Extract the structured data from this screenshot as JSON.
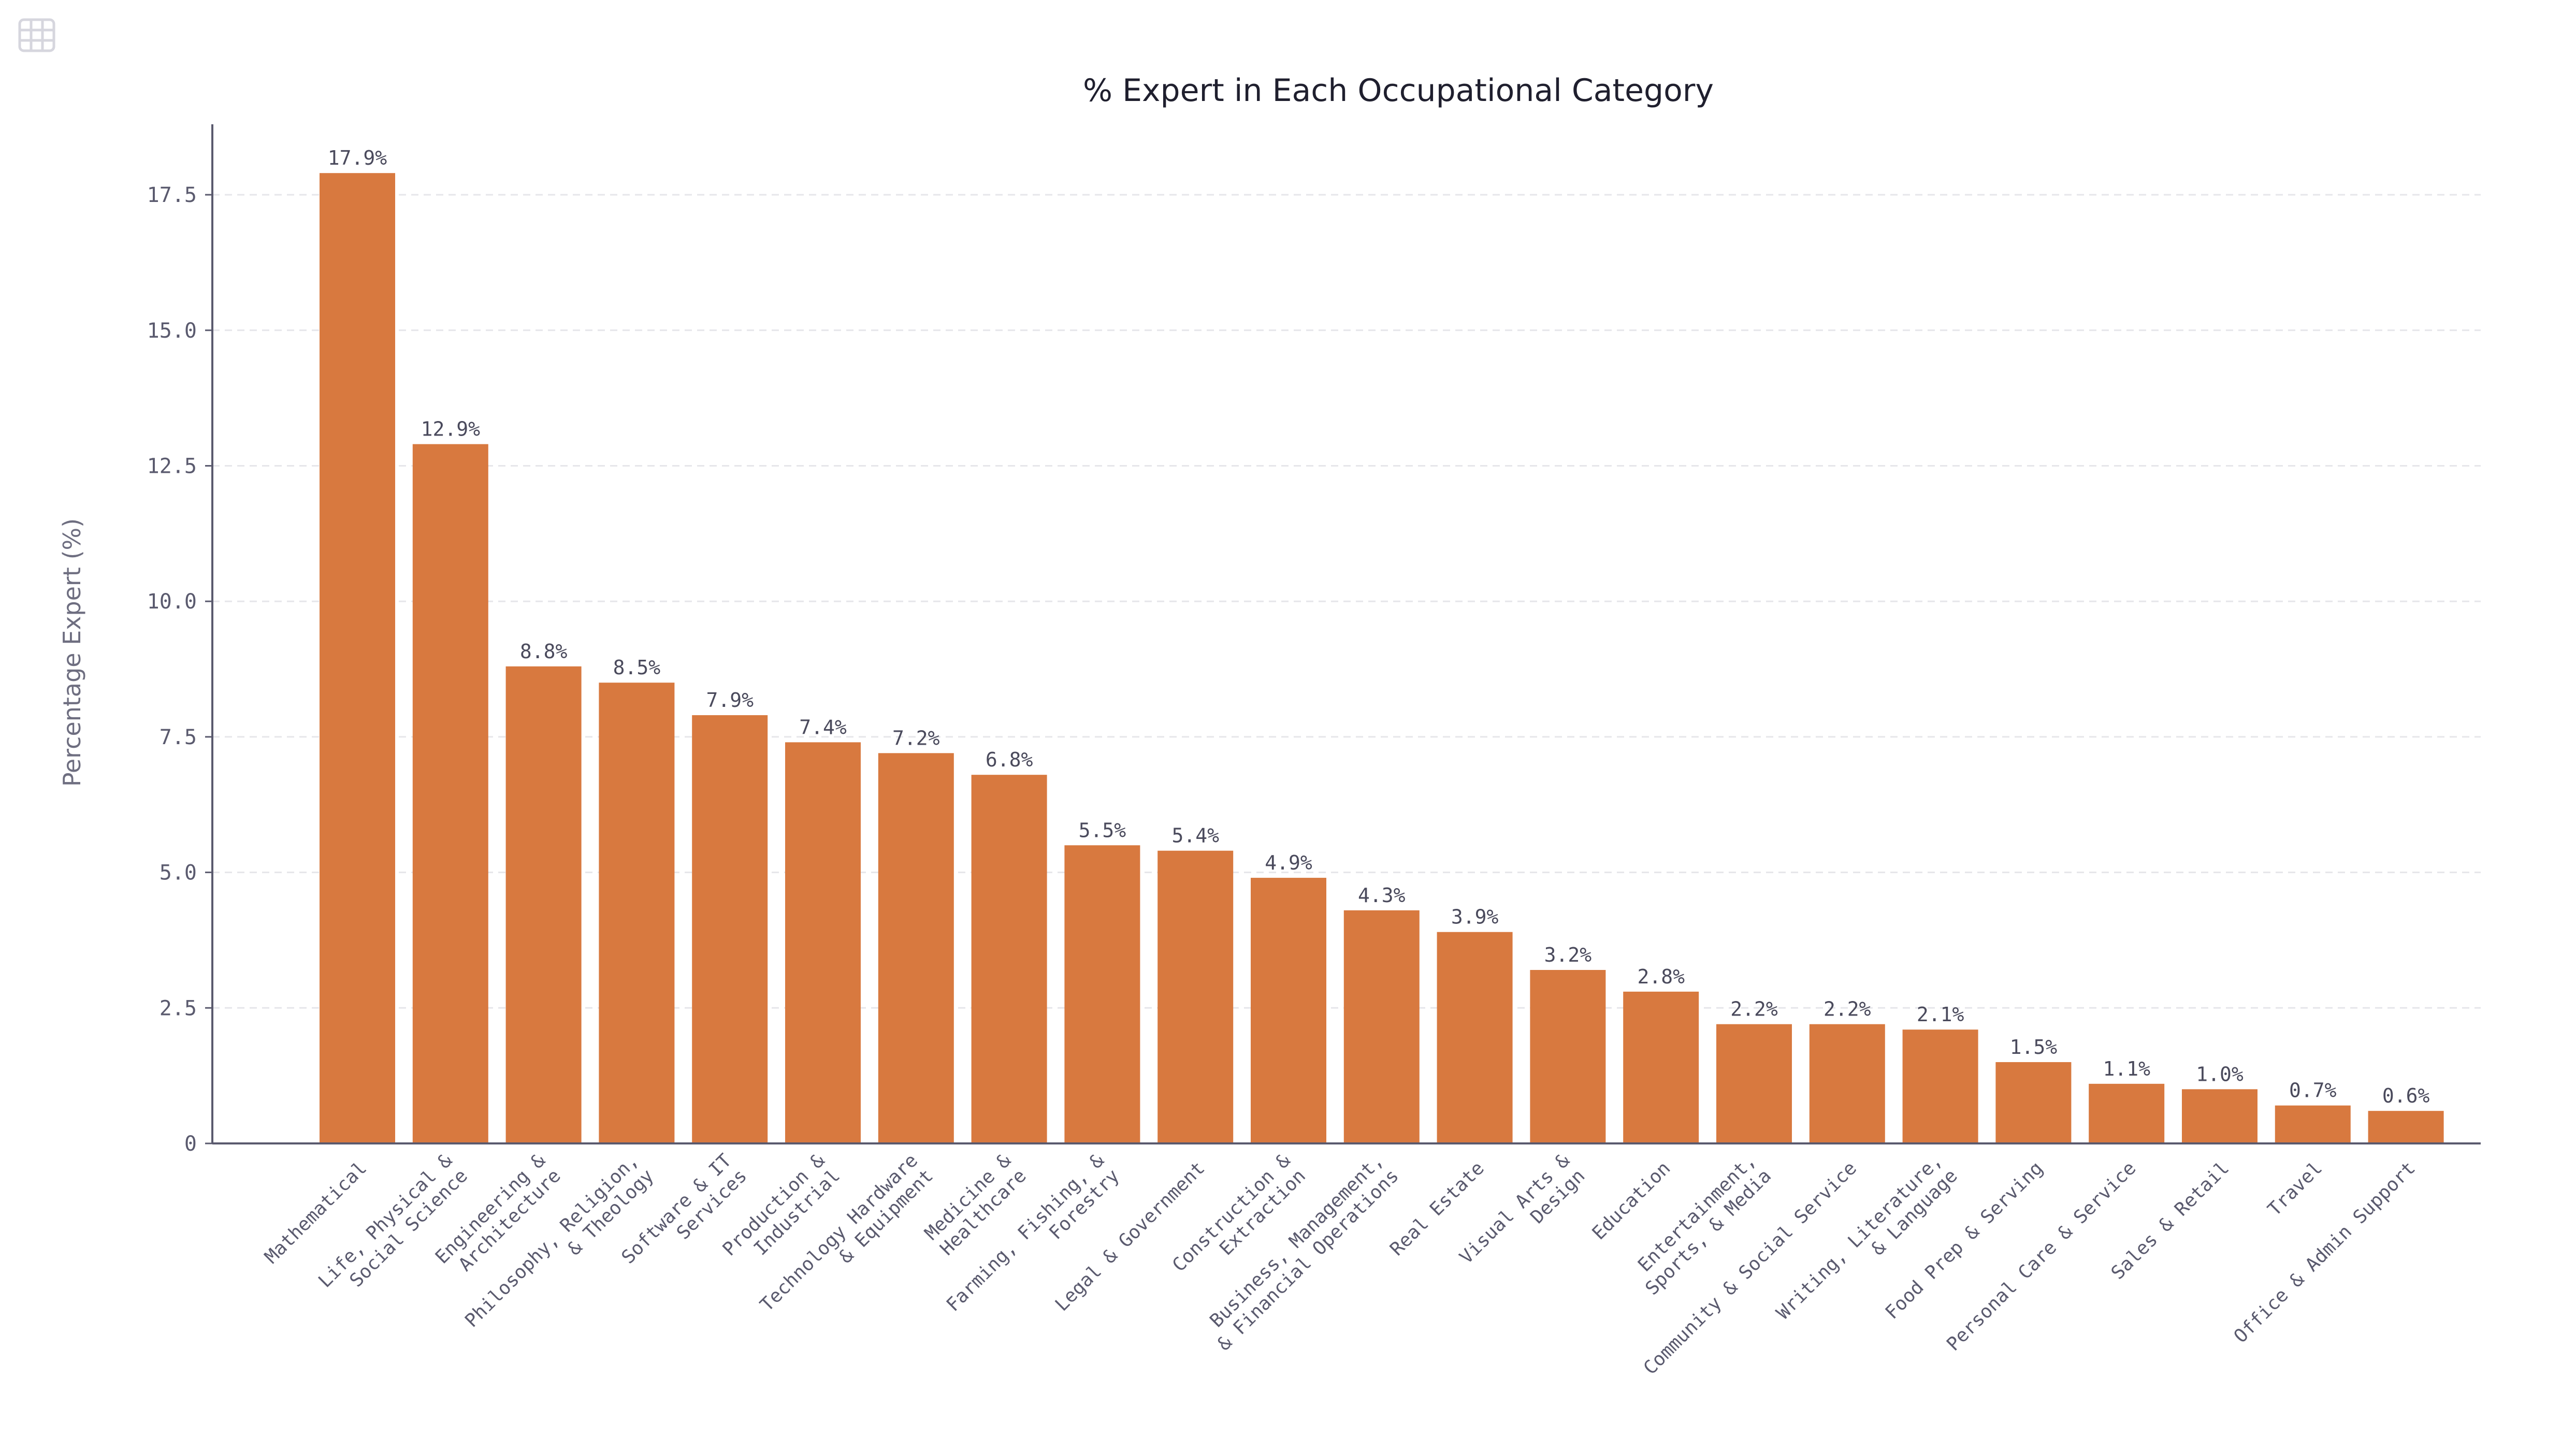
{
  "toolbar": {
    "table_icon": "table-icon"
  },
  "colors": {
    "bar": "#d8793f",
    "axis": "#5a5a6e",
    "grid": "#e6e6ea",
    "icon": "#d6d6de"
  },
  "chart_data": {
    "type": "bar",
    "title": "% Expert in Each Occupational Category",
    "xlabel": "",
    "ylabel": "Percentage Expert (%)",
    "ylim": [
      0,
      18.8
    ],
    "yticks": [
      0,
      2.5,
      5.0,
      7.5,
      10.0,
      12.5,
      15.0,
      17.5
    ],
    "ytick_labels": [
      "0",
      "2.5",
      "5.0",
      "7.5",
      "10.0",
      "12.5",
      "15.0",
      "17.5"
    ],
    "grid": true,
    "categories": [
      [
        "Mathematical"
      ],
      [
        "Life, Physical &",
        "Social Science"
      ],
      [
        "Engineering &",
        "Architecture"
      ],
      [
        "Philosophy, Religion,",
        "& Theology"
      ],
      [
        "Software & IT",
        "Services"
      ],
      [
        "Production &",
        "Industrial"
      ],
      [
        "Technology Hardware",
        "& Equipment"
      ],
      [
        "Medicine &",
        "Healthcare"
      ],
      [
        "Farming, Fishing, &",
        "Forestry"
      ],
      [
        "Legal & Government"
      ],
      [
        "Construction &",
        "Extraction"
      ],
      [
        "Business, Management,",
        "& Financial Operations"
      ],
      [
        "Real Estate"
      ],
      [
        "Visual Arts &",
        "Design"
      ],
      [
        "Education"
      ],
      [
        "Entertainment,",
        "Sports, & Media"
      ],
      [
        "Community & Social Service"
      ],
      [
        "Writing, Literature,",
        "& Language"
      ],
      [
        "Food Prep & Serving"
      ],
      [
        "Personal Care & Service"
      ],
      [
        "Sales & Retail"
      ],
      [
        "Travel"
      ],
      [
        "Office & Admin Support"
      ]
    ],
    "values": [
      17.9,
      12.9,
      8.8,
      8.5,
      7.9,
      7.4,
      7.2,
      6.8,
      5.5,
      5.4,
      4.9,
      4.3,
      3.9,
      3.2,
      2.8,
      2.2,
      2.2,
      2.1,
      1.5,
      1.1,
      1.0,
      0.7,
      0.6
    ],
    "value_labels": [
      "17.9%",
      "12.9%",
      "8.8%",
      "8.5%",
      "7.9%",
      "7.4%",
      "7.2%",
      "6.8%",
      "5.5%",
      "5.4%",
      "4.9%",
      "4.3%",
      "3.9%",
      "3.2%",
      "2.8%",
      "2.2%",
      "2.2%",
      "2.1%",
      "1.5%",
      "1.1%",
      "1.0%",
      "0.7%",
      "0.6%"
    ]
  }
}
